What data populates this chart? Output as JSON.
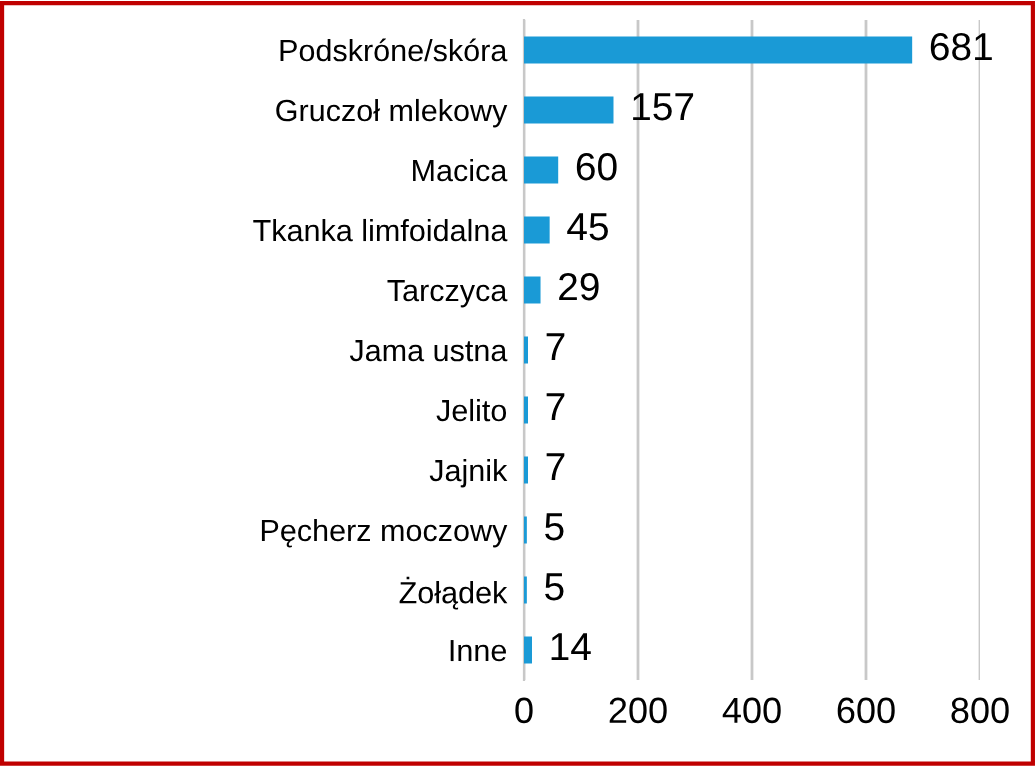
{
  "chart_data": {
    "type": "bar",
    "orientation": "horizontal",
    "categories": [
      "Podskróne/skóra",
      "Gruczoł mlekowy",
      "Macica",
      "Tkanka limfoidalna",
      "Tarczyca",
      "Jama ustna",
      "Jelito",
      "Jajnik",
      "Pęcherz moczowy",
      "Żołądek",
      "Inne"
    ],
    "values": [
      681,
      157,
      60,
      45,
      29,
      7,
      7,
      7,
      5,
      5,
      14
    ],
    "color": "#1a9ad6",
    "xlim": [
      0,
      800
    ],
    "xticks": [
      0,
      200,
      400,
      600,
      800
    ],
    "grid": "x",
    "data_labels": true,
    "legend": false
  }
}
